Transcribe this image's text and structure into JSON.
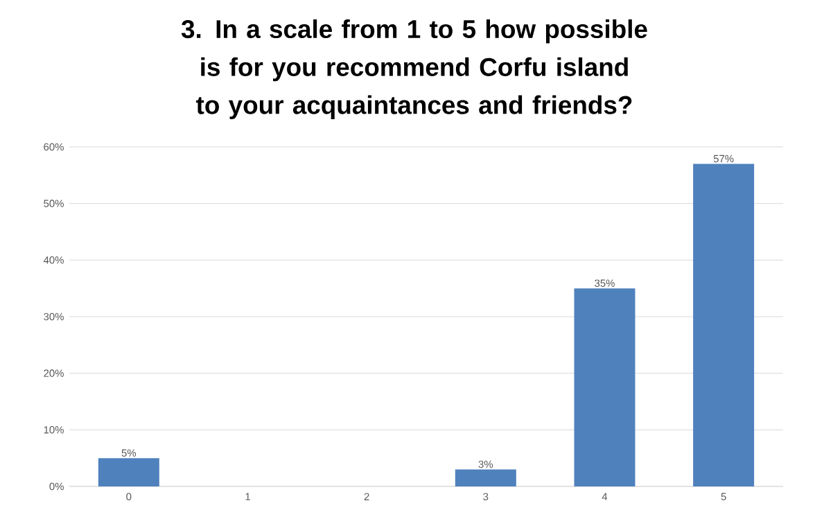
{
  "chart_data": {
    "type": "bar",
    "title": "3. In a scale from 1 to 5 how possible is for you recommend Corfu island to your acquaintances and friends?",
    "categories": [
      "0",
      "1",
      "2",
      "3",
      "4",
      "5"
    ],
    "values": [
      5,
      0,
      0,
      3,
      35,
      57
    ],
    "value_labels": [
      "5%",
      null,
      null,
      "3%",
      "35%",
      "57%"
    ],
    "color": "#4f81bd",
    "ylim": [
      0,
      60
    ],
    "yticks": [
      {
        "value": 0,
        "label": "0%"
      },
      {
        "value": 10,
        "label": "10%"
      },
      {
        "value": 20,
        "label": "20%"
      },
      {
        "value": 30,
        "label": "30%"
      },
      {
        "value": 40,
        "label": "40%"
      },
      {
        "value": 50,
        "label": "50%"
      },
      {
        "value": 60,
        "label": "60%"
      }
    ],
    "grid": "y"
  }
}
